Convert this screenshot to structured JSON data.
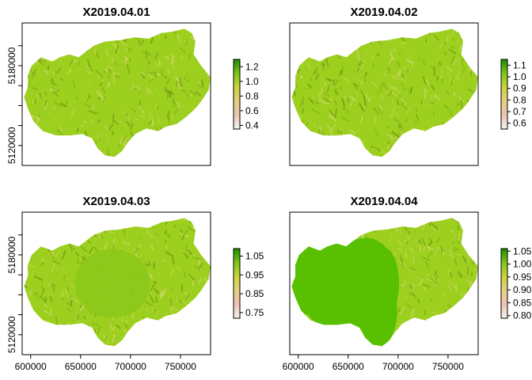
{
  "chart_data": [
    {
      "type": "heatmap",
      "title": "X2019.04.01",
      "legend": {
        "ticks": [
          "0.4",
          "0.6",
          "0.8",
          "1.0",
          "1.2"
        ],
        "range": [
          0.35,
          1.3
        ]
      },
      "x_ticks": [],
      "y_ticks": [
        "5120000",
        "5180000"
      ],
      "pattern": "textured"
    },
    {
      "type": "heatmap",
      "title": "X2019.04.02",
      "legend": {
        "ticks": [
          "0.6",
          "0.7",
          "0.8",
          "0.9",
          "1.0",
          "1.1"
        ],
        "range": [
          0.55,
          1.15
        ]
      },
      "x_ticks": [],
      "y_ticks": [],
      "pattern": "textured"
    },
    {
      "type": "heatmap",
      "title": "X2019.04.03",
      "legend": {
        "ticks": [
          "0.75",
          "0.85",
          "0.95",
          "1.05"
        ],
        "range": [
          0.72,
          1.09
        ]
      },
      "x_ticks": [
        "600000",
        "650000",
        "700000",
        "750000"
      ],
      "y_ticks": [
        "5120000",
        "5180000"
      ],
      "pattern": "center-smooth"
    },
    {
      "type": "heatmap",
      "title": "X2019.04.04",
      "legend": {
        "ticks": [
          "0.80",
          "0.85",
          "0.90",
          "0.95",
          "1.00",
          "1.05"
        ],
        "range": [
          0.79,
          1.06
        ]
      },
      "x_ticks": [
        "600000",
        "650000",
        "700000",
        "750000"
      ],
      "y_ticks": [],
      "pattern": "west-smooth"
    }
  ],
  "colors": {
    "textured_base": "#9ccf1e",
    "texture_dark": "#6e9a10",
    "texture_light": "#d4d86a",
    "smooth_fill": "#58c000",
    "legend_stops": [
      "#f2f2f2",
      "#ecc4b0",
      "#e6cf82",
      "#c8d43c",
      "#7cc616",
      "#1e8a00"
    ]
  }
}
